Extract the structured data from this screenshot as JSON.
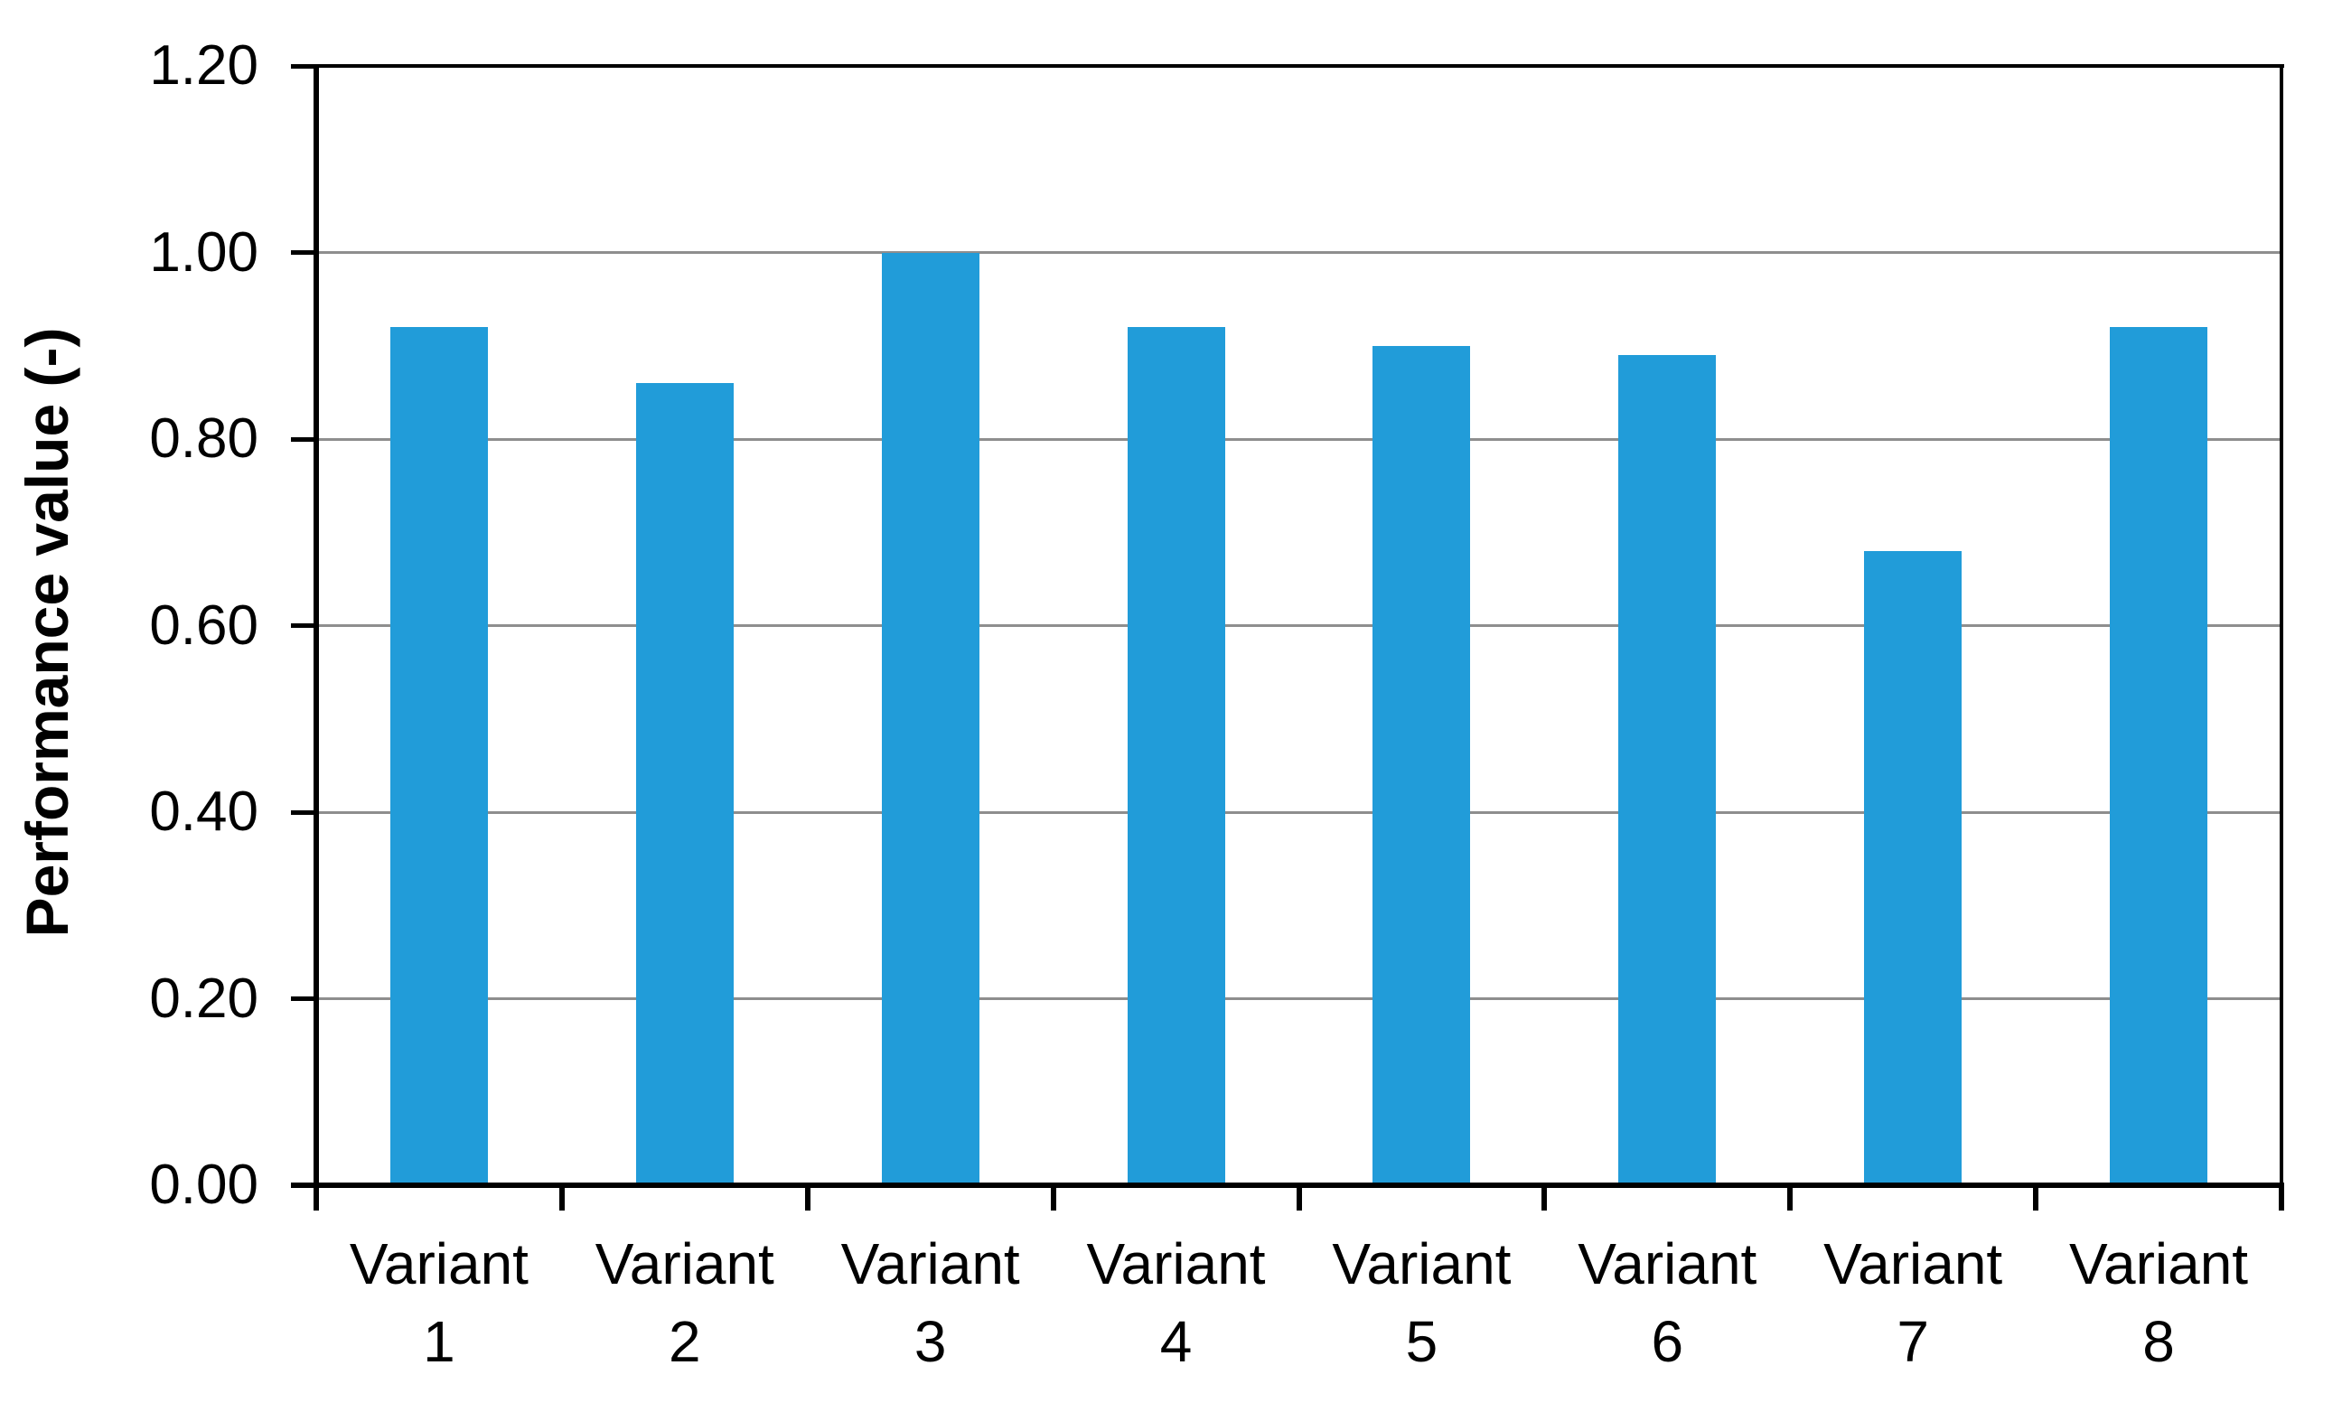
{
  "chart_data": {
    "type": "bar",
    "title": "",
    "categories": [
      "Variant 1",
      "Variant 2",
      "Variant 3",
      "Variant 4",
      "Variant 5",
      "Variant 6",
      "Variant 7",
      "Variant 8"
    ],
    "values": [
      0.92,
      0.86,
      1.0,
      0.92,
      0.9,
      0.89,
      0.68,
      0.92
    ],
    "xlabel": "",
    "ylabel": "Performance value (-)",
    "ylim": [
      0,
      1.2
    ],
    "ytick_step": 0.2,
    "ytick_labels": [
      "0.00",
      "0.20",
      "0.40",
      "0.60",
      "0.80",
      "1.00",
      "1.20"
    ],
    "grid": true,
    "legend": "none",
    "category_label_two_lines": true,
    "colors": {
      "bar": "#219CD9",
      "gridline": "#8E8E8E",
      "axis": "#000000",
      "text": "#000000",
      "background": "#FFFFFF"
    }
  },
  "layout_note": "single bar chart, no title, no legend, plot framed with black border"
}
